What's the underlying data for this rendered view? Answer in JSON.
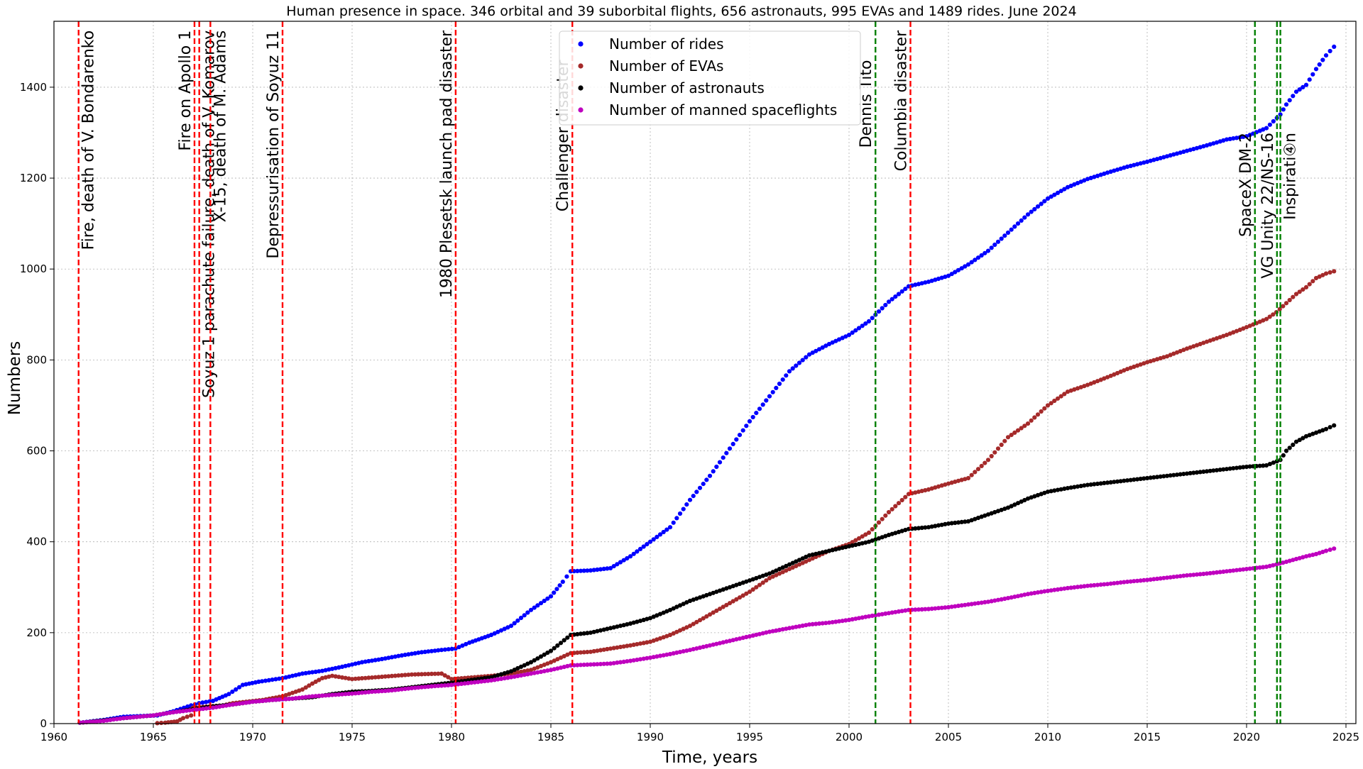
{
  "chart_data": {
    "type": "scatter",
    "title": "Human presence in space. 346 orbital and 39 suborbital flights, 656 astronauts, 995 EVAs and 1489 rides. June 2024",
    "xlabel": "Time, years",
    "ylabel": "Numbers",
    "xlim": [
      1960,
      2025.5
    ],
    "ylim": [
      0,
      1545
    ],
    "grid": true,
    "legend_position": "top-center",
    "x_ticks": [
      1960,
      1965,
      1970,
      1975,
      1980,
      1985,
      1990,
      1995,
      2000,
      2005,
      2010,
      2015,
      2020,
      2025
    ],
    "y_ticks": [
      0,
      200,
      400,
      600,
      800,
      1000,
      1200,
      1400
    ],
    "series": [
      {
        "name": "Number of rides",
        "color": "#0000ff",
        "points": [
          [
            1961.3,
            2
          ],
          [
            1962.5,
            8
          ],
          [
            1963.5,
            15
          ],
          [
            1965.2,
            18
          ],
          [
            1966.0,
            27
          ],
          [
            1966.9,
            40
          ],
          [
            1967.3,
            45
          ],
          [
            1968.0,
            50
          ],
          [
            1968.8,
            65
          ],
          [
            1969.5,
            85
          ],
          [
            1970.3,
            92
          ],
          [
            1971.5,
            100
          ],
          [
            1972.5,
            110
          ],
          [
            1973.5,
            116
          ],
          [
            1974.5,
            125
          ],
          [
            1975.5,
            135
          ],
          [
            1976.5,
            142
          ],
          [
            1977.5,
            150
          ],
          [
            1978.5,
            157
          ],
          [
            1979.5,
            162
          ],
          [
            1980.2,
            165
          ],
          [
            1980.9,
            178
          ],
          [
            1982.0,
            195
          ],
          [
            1983.0,
            215
          ],
          [
            1984.0,
            250
          ],
          [
            1985.0,
            280
          ],
          [
            1985.6,
            312
          ],
          [
            1986.0,
            335
          ],
          [
            1987.0,
            337
          ],
          [
            1988.0,
            342
          ],
          [
            1989.0,
            368
          ],
          [
            1990.0,
            400
          ],
          [
            1991.0,
            432
          ],
          [
            1992.0,
            492
          ],
          [
            1993.0,
            545
          ],
          [
            1994.0,
            605
          ],
          [
            1995.0,
            665
          ],
          [
            1996.0,
            720
          ],
          [
            1997.0,
            775
          ],
          [
            1998.0,
            812
          ],
          [
            1999.0,
            835
          ],
          [
            2000.0,
            855
          ],
          [
            2001.0,
            885
          ],
          [
            2002.0,
            928
          ],
          [
            2003.0,
            962
          ],
          [
            2004.0,
            972
          ],
          [
            2005.0,
            985
          ],
          [
            2006.0,
            1010
          ],
          [
            2007.0,
            1040
          ],
          [
            2008.0,
            1080
          ],
          [
            2009.0,
            1120
          ],
          [
            2010.0,
            1155
          ],
          [
            2011.0,
            1180
          ],
          [
            2012.0,
            1198
          ],
          [
            2013.0,
            1212
          ],
          [
            2014.0,
            1225
          ],
          [
            2015.0,
            1236
          ],
          [
            2016.0,
            1248
          ],
          [
            2017.0,
            1260
          ],
          [
            2018.0,
            1272
          ],
          [
            2019.0,
            1285
          ],
          [
            2020.0,
            1292
          ],
          [
            2021.0,
            1310
          ],
          [
            2021.7,
            1340
          ],
          [
            2022.0,
            1362
          ],
          [
            2022.5,
            1390
          ],
          [
            2023.0,
            1405
          ],
          [
            2023.5,
            1440
          ],
          [
            2024.0,
            1470
          ],
          [
            2024.4,
            1489
          ]
        ]
      },
      {
        "name": "Number of EVAs",
        "color": "#a52a2a",
        "points": [
          [
            1965.2,
            1
          ],
          [
            1965.6,
            2
          ],
          [
            1966.2,
            5
          ],
          [
            1966.5,
            12
          ],
          [
            1966.9,
            18
          ],
          [
            1967.0,
            35
          ],
          [
            1968.5,
            40
          ],
          [
            1969.0,
            45
          ],
          [
            1970.5,
            52
          ],
          [
            1971.5,
            60
          ],
          [
            1972.5,
            75
          ],
          [
            1973.0,
            88
          ],
          [
            1973.5,
            100
          ],
          [
            1974.0,
            105
          ],
          [
            1975.0,
            98
          ],
          [
            1978.0,
            108
          ],
          [
            1979.5,
            110
          ],
          [
            1980.0,
            98
          ],
          [
            1982.0,
            105
          ],
          [
            1983.0,
            110
          ],
          [
            1984.0,
            118
          ],
          [
            1985.0,
            135
          ],
          [
            1986.0,
            155
          ],
          [
            1987.0,
            158
          ],
          [
            1988.0,
            165
          ],
          [
            1989.0,
            172
          ],
          [
            1990.0,
            180
          ],
          [
            1991.0,
            195
          ],
          [
            1992.0,
            215
          ],
          [
            1993.0,
            240
          ],
          [
            1994.0,
            265
          ],
          [
            1995.0,
            290
          ],
          [
            1996.0,
            320
          ],
          [
            1997.0,
            340
          ],
          [
            1998.0,
            360
          ],
          [
            1999.0,
            380
          ],
          [
            2000.0,
            395
          ],
          [
            2001.0,
            420
          ],
          [
            2002.0,
            465
          ],
          [
            2003.0,
            505
          ],
          [
            2004.0,
            515
          ],
          [
            2005.0,
            528
          ],
          [
            2006.0,
            540
          ],
          [
            2007.0,
            580
          ],
          [
            2008.0,
            630
          ],
          [
            2009.0,
            660
          ],
          [
            2010.0,
            700
          ],
          [
            2011.0,
            730
          ],
          [
            2012.0,
            745
          ],
          [
            2013.0,
            762
          ],
          [
            2014.0,
            780
          ],
          [
            2015.0,
            795
          ],
          [
            2016.0,
            808
          ],
          [
            2017.0,
            825
          ],
          [
            2018.0,
            840
          ],
          [
            2019.0,
            855
          ],
          [
            2020.0,
            872
          ],
          [
            2021.0,
            890
          ],
          [
            2021.5,
            905
          ],
          [
            2022.0,
            925
          ],
          [
            2022.5,
            945
          ],
          [
            2023.0,
            960
          ],
          [
            2023.5,
            980
          ],
          [
            2024.0,
            990
          ],
          [
            2024.4,
            995
          ]
        ]
      },
      {
        "name": "Number of astronauts",
        "color": "#000000",
        "points": [
          [
            1961.3,
            2
          ],
          [
            1962.5,
            7
          ],
          [
            1963.5,
            12
          ],
          [
            1965.0,
            18
          ],
          [
            1966.0,
            25
          ],
          [
            1967.0,
            32
          ],
          [
            1968.0,
            38
          ],
          [
            1969.0,
            42
          ],
          [
            1970.0,
            48
          ],
          [
            1971.0,
            52
          ],
          [
            1972.0,
            55
          ],
          [
            1973.0,
            58
          ],
          [
            1974.0,
            65
          ],
          [
            1975.0,
            70
          ],
          [
            1976.0,
            72
          ],
          [
            1977.0,
            75
          ],
          [
            1978.0,
            80
          ],
          [
            1979.0,
            85
          ],
          [
            1980.0,
            90
          ],
          [
            1981.0,
            96
          ],
          [
            1982.0,
            102
          ],
          [
            1983.0,
            115
          ],
          [
            1984.0,
            135
          ],
          [
            1985.0,
            160
          ],
          [
            1986.0,
            195
          ],
          [
            1987.0,
            200
          ],
          [
            1988.0,
            210
          ],
          [
            1989.0,
            220
          ],
          [
            1990.0,
            232
          ],
          [
            1991.0,
            250
          ],
          [
            1992.0,
            270
          ],
          [
            1993.0,
            285
          ],
          [
            1994.0,
            300
          ],
          [
            1995.0,
            315
          ],
          [
            1996.0,
            330
          ],
          [
            1997.0,
            350
          ],
          [
            1998.0,
            370
          ],
          [
            1999.0,
            380
          ],
          [
            2000.0,
            390
          ],
          [
            2001.0,
            400
          ],
          [
            2002.0,
            415
          ],
          [
            2003.0,
            428
          ],
          [
            2004.0,
            432
          ],
          [
            2005.0,
            440
          ],
          [
            2006.0,
            445
          ],
          [
            2007.0,
            460
          ],
          [
            2008.0,
            475
          ],
          [
            2009.0,
            495
          ],
          [
            2010.0,
            510
          ],
          [
            2011.0,
            518
          ],
          [
            2012.0,
            525
          ],
          [
            2013.0,
            530
          ],
          [
            2014.0,
            535
          ],
          [
            2015.0,
            540
          ],
          [
            2016.0,
            545
          ],
          [
            2017.0,
            550
          ],
          [
            2018.0,
            555
          ],
          [
            2019.0,
            560
          ],
          [
            2020.0,
            565
          ],
          [
            2021.0,
            568
          ],
          [
            2021.7,
            580
          ],
          [
            2022.0,
            600
          ],
          [
            2022.5,
            620
          ],
          [
            2023.0,
            632
          ],
          [
            2023.5,
            640
          ],
          [
            2024.0,
            648
          ],
          [
            2024.4,
            656
          ]
        ]
      },
      {
        "name": "Number of manned spaceflights",
        "color": "#bf00bf",
        "points": [
          [
            1961.3,
            2
          ],
          [
            1962.5,
            6
          ],
          [
            1963.5,
            12
          ],
          [
            1965.0,
            18
          ],
          [
            1966.0,
            25
          ],
          [
            1967.0,
            30
          ],
          [
            1968.0,
            35
          ],
          [
            1969.0,
            42
          ],
          [
            1970.0,
            48
          ],
          [
            1971.0,
            52
          ],
          [
            1972.0,
            55
          ],
          [
            1973.0,
            60
          ],
          [
            1974.0,
            63
          ],
          [
            1975.0,
            66
          ],
          [
            1976.0,
            70
          ],
          [
            1977.0,
            73
          ],
          [
            1978.0,
            78
          ],
          [
            1979.0,
            82
          ],
          [
            1980.0,
            85
          ],
          [
            1981.0,
            90
          ],
          [
            1982.0,
            95
          ],
          [
            1983.0,
            102
          ],
          [
            1984.0,
            110
          ],
          [
            1985.0,
            118
          ],
          [
            1986.0,
            128
          ],
          [
            1987.0,
            130
          ],
          [
            1988.0,
            132
          ],
          [
            1989.0,
            138
          ],
          [
            1990.0,
            145
          ],
          [
            1991.0,
            153
          ],
          [
            1992.0,
            162
          ],
          [
            1993.0,
            172
          ],
          [
            1994.0,
            182
          ],
          [
            1995.0,
            192
          ],
          [
            1996.0,
            202
          ],
          [
            1997.0,
            210
          ],
          [
            1998.0,
            218
          ],
          [
            1999.0,
            222
          ],
          [
            2000.0,
            228
          ],
          [
            2001.0,
            236
          ],
          [
            2002.0,
            243
          ],
          [
            2003.0,
            250
          ],
          [
            2004.0,
            252
          ],
          [
            2005.0,
            256
          ],
          [
            2006.0,
            262
          ],
          [
            2007.0,
            268
          ],
          [
            2008.0,
            276
          ],
          [
            2009.0,
            285
          ],
          [
            2010.0,
            292
          ],
          [
            2011.0,
            298
          ],
          [
            2012.0,
            303
          ],
          [
            2013.0,
            307
          ],
          [
            2014.0,
            312
          ],
          [
            2015.0,
            316
          ],
          [
            2016.0,
            321
          ],
          [
            2017.0,
            326
          ],
          [
            2018.0,
            330
          ],
          [
            2019.0,
            335
          ],
          [
            2020.0,
            340
          ],
          [
            2021.0,
            345
          ],
          [
            2021.5,
            350
          ],
          [
            2022.0,
            356
          ],
          [
            2022.5,
            362
          ],
          [
            2023.0,
            368
          ],
          [
            2023.5,
            373
          ],
          [
            2024.0,
            380
          ],
          [
            2024.4,
            385
          ]
        ]
      }
    ],
    "events": [
      {
        "year": 1961.24,
        "label": "Fire, death of V. Bondarenko",
        "kind": "tragedy",
        "label_side": "right",
        "label_top": 1525
      },
      {
        "year": 1967.07,
        "label": "Fire on Apollo 1",
        "kind": "tragedy",
        "label_side": "left",
        "label_top": 1525
      },
      {
        "year": 1967.31,
        "label": "Soyuz 1 parachute failure, death of V. Komarov",
        "kind": "tragedy",
        "label_side": "right",
        "label_top": 1525
      },
      {
        "year": 1967.87,
        "label": "X-15, death of M. Adams",
        "kind": "tragedy",
        "label_side": "right",
        "label_top": 1525
      },
      {
        "year": 1971.5,
        "label": "Depressurisation of Soyuz 11",
        "kind": "tragedy",
        "label_side": "left",
        "label_top": 1525
      },
      {
        "year": 1980.21,
        "label": "1980 Plesetsk launch pad disaster",
        "kind": "tragedy",
        "label_side": "left",
        "label_top": 1525
      },
      {
        "year": 1986.08,
        "label": "Challenger disaster",
        "kind": "tragedy",
        "label_side": "left",
        "label_top": 1460
      },
      {
        "year": 2001.33,
        "label": "Dennis Tito",
        "kind": "milestone",
        "label_side": "left",
        "label_top": 1460
      },
      {
        "year": 2003.09,
        "label": "Columbia disaster",
        "kind": "tragedy",
        "label_side": "left",
        "label_top": 1525
      },
      {
        "year": 2020.42,
        "label": "SpaceX DM-2",
        "kind": "milestone",
        "label_side": "left",
        "label_top": 1300
      },
      {
        "year": 2021.53,
        "label": "VG Unity 22/NS-16",
        "kind": "milestone",
        "label_side": "left",
        "label_top": 1300
      },
      {
        "year": 2021.7,
        "label": "Inspirati④n",
        "kind": "milestone",
        "label_side": "right",
        "label_top": 1300
      }
    ],
    "event_colors": {
      "tragedy": "#ff0000",
      "milestone": "#008000"
    }
  }
}
